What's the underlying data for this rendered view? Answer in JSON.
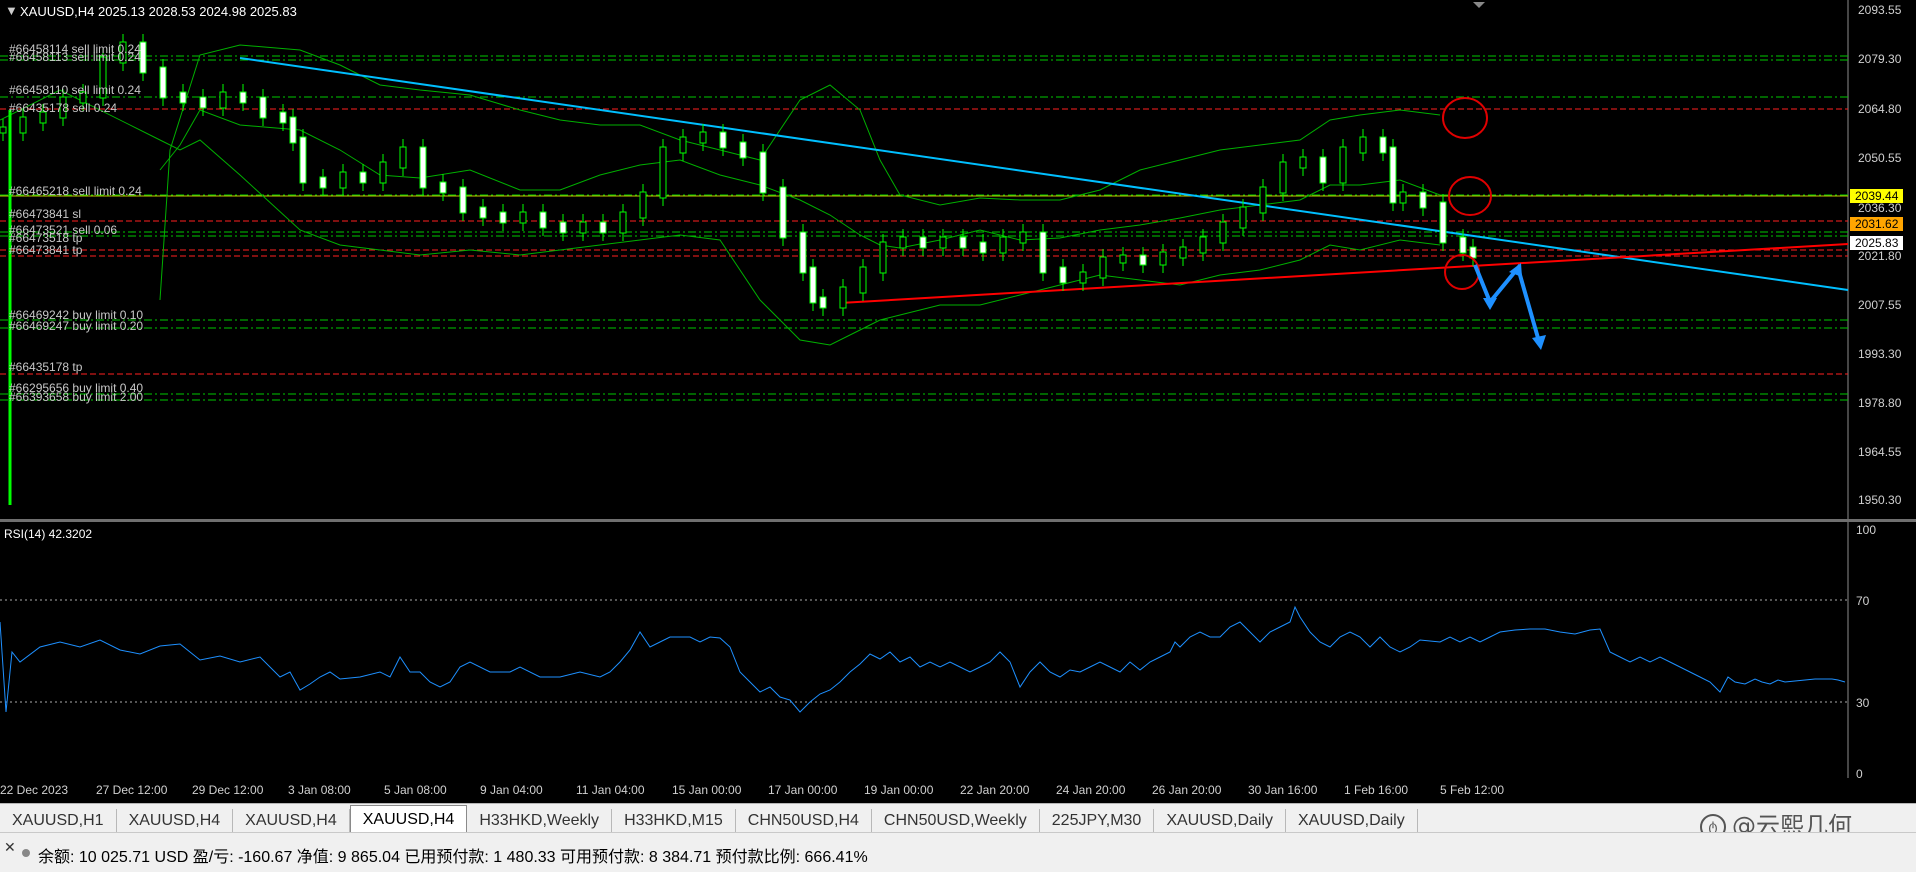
{
  "header": {
    "symbol_info": "XAUUSD,H4  2025.13 2028.53 2024.98 2025.83"
  },
  "price_axis": {
    "ticks": [
      "2093.55",
      "2079.30",
      "2064.80",
      "2050.55",
      "2036.30",
      "2021.80",
      "2007.55",
      "1993.30",
      "1978.80",
      "1964.55",
      "1950.30"
    ],
    "tags": [
      {
        "label": "2039.44",
        "bg": "#ffff00",
        "fg": "#000000"
      },
      {
        "label": "2031.62",
        "bg": "#ffa500",
        "fg": "#000000"
      },
      {
        "label": "2025.83",
        "bg": "#ffffff",
        "fg": "#000000"
      }
    ]
  },
  "order_labels": [
    "#66458114 sell limit 0.24",
    "#66458113 sell limit 0.24",
    "#66458110 sell limit 0.24",
    "#66435178 sell 0.24",
    "#66465218 sell limit 0.24",
    "#66473841 sl",
    "#66473521 sell 0.06",
    "#66473518 tp",
    "#66473841 tp",
    "#66469242 buy limit 0.10",
    "#66469247 buy limit 0.20",
    "#66435178 tp",
    "#66295656 buy limit 0.40",
    "#66393658 buy limit 2.00"
  ],
  "rsi": {
    "title": "RSI(14) 42.3202",
    "axis": [
      "100",
      "70",
      "30",
      "0"
    ]
  },
  "dates": [
    "22 Dec 2023",
    "27 Dec 12:00",
    "29 Dec 12:00",
    "3 Jan 08:00",
    "5 Jan 08:00",
    "9 Jan 04:00",
    "11 Jan 04:00",
    "15 Jan 00:00",
    "17 Jan 00:00",
    "19 Jan 00:00",
    "22 Jan 20:00",
    "24 Jan 20:00",
    "26 Jan 20:00",
    "30 Jan 16:00",
    "1 Feb 16:00",
    "5 Feb 12:00"
  ],
  "tabs": [
    "XAUUSD,H1",
    "XAUUSD,H4",
    "XAUUSD,H4",
    "XAUUSD,H4",
    "H33HKD,Weekly",
    "H33HKD,M15",
    "CHN50USD,H4",
    "CHN50USD,Weekly",
    "225JPY,M30",
    "XAUUSD,Daily",
    "XAUUSD,Daily"
  ],
  "active_tab_index": 3,
  "status": {
    "text": "余额: 10 025.71 USD  盈/亏: -160.67  净值: 9 865.04  已用预付款: 1 480.33  可用预付款: 8 384.71  预付款比例: 666.41%"
  },
  "watermark": {
    "text": "@云熙几何"
  },
  "colors": {
    "candle": "#00ff00",
    "trend_blue": "#00bfff",
    "trend_red": "#ff0000",
    "band": "#00c000",
    "rsi": "#1e90ff"
  }
}
